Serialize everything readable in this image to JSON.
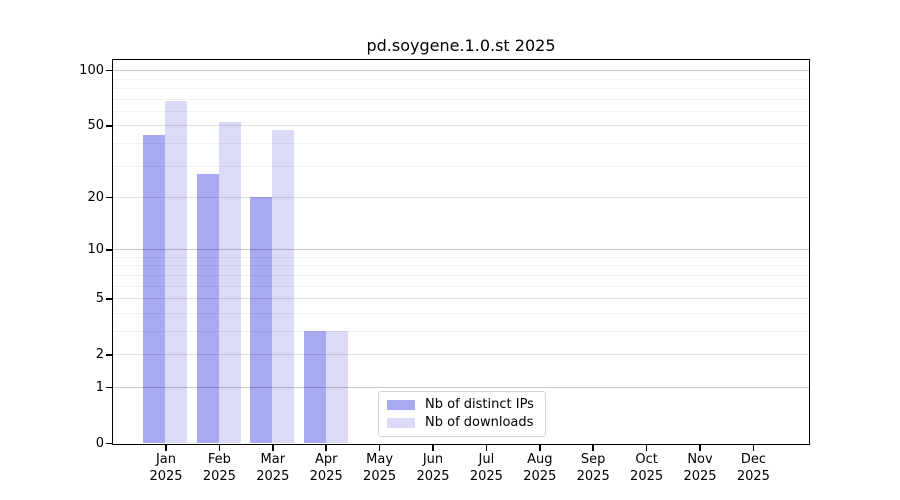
{
  "title": "pd.soygene.1.0.st 2025",
  "chart_data": {
    "type": "bar",
    "title": "pd.soygene.1.0.st 2025",
    "year_label": "2025",
    "categories": [
      "Jan",
      "Feb",
      "Mar",
      "Apr",
      "May",
      "Jun",
      "Jul",
      "Aug",
      "Sep",
      "Oct",
      "Nov",
      "Dec"
    ],
    "series": [
      {
        "name": "Nb of distinct IPs",
        "color": "#a9a9f2",
        "values": [
          44,
          27,
          20,
          3,
          0,
          0,
          0,
          0,
          0,
          0,
          0,
          0
        ]
      },
      {
        "name": "Nb of downloads",
        "color": "#dbdbf8",
        "values": [
          68,
          52,
          47,
          3,
          0,
          0,
          0,
          0,
          0,
          0,
          0,
          0
        ]
      }
    ],
    "xlabel": "",
    "ylabel": "",
    "y_scale": "log10(value+1)",
    "y_ticks": [
      100,
      50,
      20,
      10,
      5,
      2,
      1,
      0
    ],
    "y_minor_grid": [
      90,
      80,
      70,
      60,
      40,
      30,
      9,
      8,
      7,
      6,
      4,
      3
    ],
    "ylim": [
      0,
      114
    ],
    "grid": true,
    "legend": {
      "entries": [
        "Nb of distinct IPs",
        "Nb of downloads"
      ],
      "position": "inside-bottom-center"
    }
  }
}
